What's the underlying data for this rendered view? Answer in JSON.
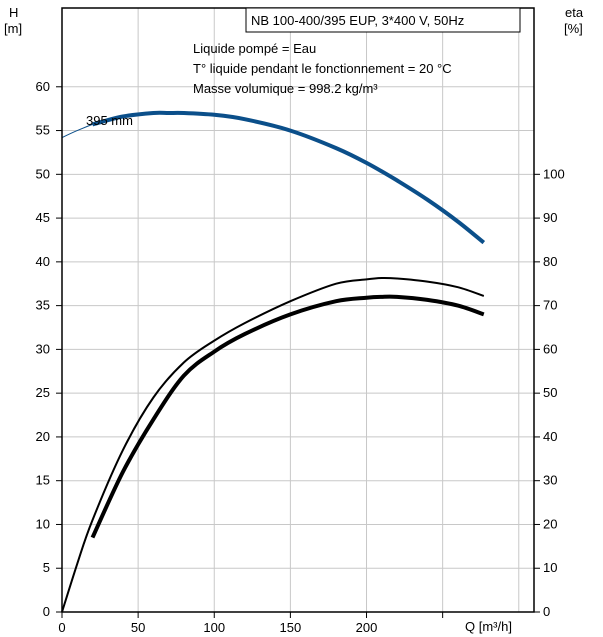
{
  "chart_data": {
    "type": "line",
    "title": "NB 100-400/395 EUP, 3*400 V, 50Hz",
    "info_lines": [
      "Liquide pompé = Eau",
      "T° liquide pendant le fonctionnement = 20 °C",
      "Masse volumique = 998.2 kg/m³"
    ],
    "left_axis": {
      "label_symbol": "H",
      "label_unit": "[m]",
      "range": [
        0,
        69
      ],
      "ticks": [
        0,
        5,
        10,
        15,
        20,
        25,
        30,
        35,
        40,
        45,
        50,
        55,
        60
      ]
    },
    "right_axis": {
      "label_symbol": "eta",
      "label_unit": "[%]",
      "range": [
        0,
        138
      ],
      "ticks": [
        0,
        10,
        20,
        30,
        40,
        50,
        60,
        70,
        80,
        90,
        100
      ]
    },
    "x_axis": {
      "label": "Q [m³/h]",
      "range": [
        0,
        310
      ],
      "ticks": [
        0,
        50,
        100,
        150,
        200
      ]
    },
    "grid": true,
    "colors": {
      "head_curve": "#0b4f8a",
      "efficiency_curves": "#000000",
      "grid": "#c8c8c8"
    },
    "series": [
      {
        "name": "395 mm",
        "axis": "left",
        "curve": "head",
        "x": [
          0,
          10,
          20,
          40,
          60,
          70,
          80,
          100,
          120,
          150,
          180,
          200,
          220,
          240,
          260,
          277
        ],
        "y": [
          54.2,
          55.0,
          55.7,
          56.6,
          57.0,
          57.0,
          57.0,
          56.8,
          56.3,
          55.0,
          53.0,
          51.3,
          49.3,
          47.1,
          44.6,
          42.2
        ]
      },
      {
        "curve": "eta_upper",
        "axis": "right",
        "x": [
          0,
          10,
          20,
          40,
          60,
          80,
          100,
          120,
          150,
          180,
          200,
          210,
          220,
          240,
          260,
          277
        ],
        "y": [
          0,
          11,
          21,
          37,
          49,
          57,
          62,
          66,
          71,
          75,
          76,
          76.3,
          76.2,
          75.5,
          74.2,
          72.2
        ]
      },
      {
        "curve": "eta_operating",
        "axis": "right",
        "x": [
          20,
          40,
          60,
          80,
          100,
          120,
          150,
          180,
          200,
          210,
          220,
          240,
          260,
          277
        ],
        "y": [
          17,
          32,
          44,
          54,
          59.5,
          63.5,
          68,
          71,
          71.8,
          72,
          72,
          71.3,
          70,
          68
        ]
      }
    ]
  }
}
